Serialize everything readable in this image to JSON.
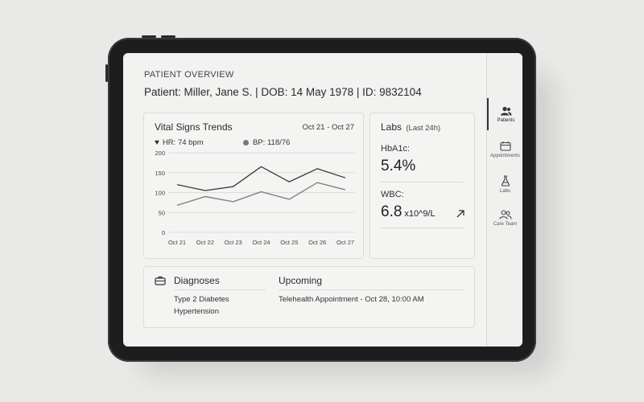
{
  "overview": {
    "heading": "PATIENT OVERVIEW",
    "patient_line": "Patient: Miller, Jane S.  |  DOB: 14 May 1978  |  ID: 9832104"
  },
  "vitals": {
    "title": "Vital Signs Trends",
    "date_range": "Oct 21 - Oct 27",
    "legend_hr": "HR: 74 bpm",
    "legend_bp": "BP: 118/76"
  },
  "chart_data": {
    "type": "line",
    "x": [
      "Oct 21",
      "Oct 22",
      "Oct 23",
      "Oct 24",
      "Oct 25",
      "Oct 26",
      "Oct 27"
    ],
    "yticks": [
      "200",
      "150",
      "100",
      "50",
      "0"
    ],
    "ylim": [
      0,
      200
    ],
    "grid": true,
    "series": [
      {
        "name": "HR: 74 bpm",
        "values": [
          120,
          105,
          115,
          165,
          127,
          160,
          137
        ],
        "color": "#3a3a3a"
      },
      {
        "name": "BP: 118/76",
        "values": [
          68,
          90,
          77,
          102,
          83,
          125,
          107
        ],
        "color": "#7a7a7a"
      }
    ]
  },
  "labs": {
    "title": "Labs",
    "subtitle": "(Last 24h)",
    "hba1c_label": "HbA1c:",
    "hba1c_value": "5.4%",
    "wbc_label": "WBC:",
    "wbc_value": "6.8",
    "wbc_unit": "x10^9/L"
  },
  "diagnoses": {
    "title": "Diagnoses",
    "items": [
      "Type 2 Diabetes",
      "Hypertension"
    ]
  },
  "upcoming": {
    "title": "Upcoming",
    "item": "Telehealth Appointment - Oct 28, 10:00 AM"
  },
  "nav": {
    "items": [
      {
        "label": "Patients",
        "icon": "patients-icon"
      },
      {
        "label": "Appointments",
        "icon": "calendar-icon"
      },
      {
        "label": "Labs",
        "icon": "flask-icon"
      },
      {
        "label": "Care Team",
        "icon": "care-team-icon"
      }
    ]
  },
  "colors": {
    "accent": "#2b2b2b",
    "screen_bg": "#f2f2f1",
    "bezel": "#1d1d1f"
  }
}
